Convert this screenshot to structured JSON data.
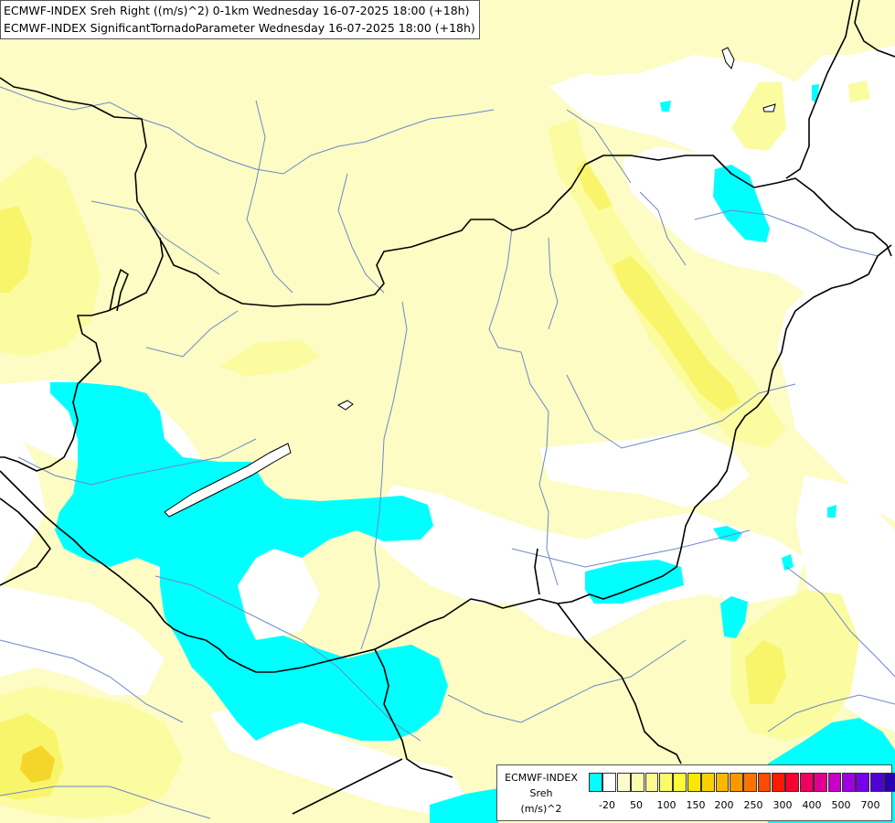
{
  "title_lines": [
    "ECMWF-INDEX Sreh Right ((m/s)^2) 0-1km Wednesday 16-07-2025 18:00 (+18h)",
    "ECMWF-INDEX SignificantTornadoParameter Wednesday 16-07-2025 18:00 (+18h)"
  ],
  "legend": {
    "model": "ECMWF-INDEX",
    "variable": "Sreh",
    "unit": "(m/s)^2",
    "colors": [
      "#00ffff",
      "#ffffff",
      "#fbfbcd",
      "#fbfbb0",
      "#fbfb90",
      "#fbfb6a",
      "#fbfb3a",
      "#fbe800",
      "#fbd000",
      "#fbb800",
      "#fb9800",
      "#fb7400",
      "#fb4c00",
      "#fb1a00",
      "#fb0030",
      "#f00060",
      "#e00090",
      "#c800c8",
      "#a000e0",
      "#7800e8",
      "#5000d8",
      "#2800b0",
      "#000080"
    ],
    "tick_labels": [
      "-20",
      "50",
      "100",
      "150",
      "200",
      "250",
      "300",
      "400",
      "500",
      "700"
    ]
  },
  "colors": {
    "cyan": "#00ffff",
    "pale_yellow": "#fcfcc4",
    "light_yellow": "#fbfba0",
    "yellow": "#f8f56a",
    "deep_yellow": "#f5ef30",
    "orange_yellow": "#f4d62a",
    "border_line": "#000000",
    "river_line": "#6e88c8"
  }
}
